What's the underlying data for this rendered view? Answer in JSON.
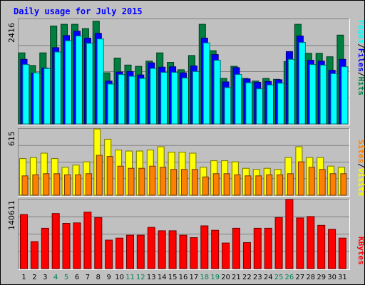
{
  "chart_data": [
    {
      "type": "bar",
      "title": "Daily usage for July 2015",
      "categories": [
        "1",
        "2",
        "3",
        "4",
        "5",
        "6",
        "7",
        "8",
        "9",
        "10",
        "11",
        "12",
        "13",
        "14",
        "15",
        "16",
        "17",
        "18",
        "19",
        "20",
        "21",
        "22",
        "23",
        "24",
        "25",
        "26",
        "27",
        "28",
        "29",
        "30",
        "31"
      ],
      "weekend_days": [
        "4",
        "5",
        "11",
        "12",
        "18",
        "19",
        "25",
        "26"
      ],
      "ylabel_max": "2416",
      "ylim": [
        0,
        2416
      ],
      "legend_label": "Hits",
      "legend_label2": "Files",
      "legend_label3": "Pages",
      "legend_sep": "/",
      "grid": true,
      "series": [
        {
          "name": "Hits",
          "color": "#008040",
          "values": [
            1640,
            1350,
            1640,
            2260,
            2300,
            2300,
            2200,
            2370,
            1180,
            1520,
            1360,
            1330,
            1450,
            1640,
            1420,
            1250,
            1580,
            2300,
            1690,
            1050,
            1330,
            1050,
            990,
            1050,
            1030,
            1440,
            2300,
            1630,
            1630,
            1550,
            2050
          ]
        },
        {
          "name": "Files",
          "color": "#0000ff",
          "values": [
            1490,
            1170,
            1290,
            1760,
            2040,
            2140,
            1980,
            2090,
            990,
            1200,
            1210,
            1130,
            1410,
            1310,
            1320,
            1180,
            1340,
            1980,
            1600,
            970,
            1300,
            1040,
            960,
            980,
            1020,
            1670,
            2030,
            1470,
            1450,
            1240,
            1490
          ]
        },
        {
          "name": "Pages",
          "color": "#00ffff",
          "values": [
            1370,
            1180,
            1280,
            1660,
            1920,
            2030,
            1860,
            1960,
            920,
            1140,
            1100,
            1050,
            1280,
            1190,
            1190,
            1060,
            1210,
            1870,
            1470,
            840,
            1140,
            950,
            810,
            900,
            940,
            1490,
            1880,
            1370,
            1360,
            1160,
            1320
          ]
        }
      ]
    },
    {
      "type": "bar",
      "ylabel_max": "615",
      "ylim": [
        0,
        615
      ],
      "legend_label": "Visits",
      "legend_label2": "Sites",
      "legend_sep": "/",
      "grid": true,
      "series": [
        {
          "name": "Visits",
          "color": "#ffff00",
          "values": [
            340,
            350,
            390,
            340,
            260,
            280,
            310,
            615,
            520,
            420,
            410,
            410,
            420,
            450,
            400,
            400,
            390,
            260,
            320,
            320,
            310,
            250,
            240,
            250,
            240,
            350,
            450,
            350,
            350,
            270,
            260
          ]
        },
        {
          "name": "Sites",
          "color": "#ff8000",
          "values": [
            180,
            190,
            200,
            200,
            190,
            190,
            200,
            370,
            360,
            270,
            250,
            250,
            270,
            260,
            240,
            240,
            240,
            170,
            200,
            200,
            190,
            180,
            180,
            190,
            190,
            200,
            310,
            260,
            240,
            200,
            200
          ]
        }
      ]
    },
    {
      "type": "bar",
      "ylabel_max": "140611",
      "ylim": [
        0,
        140611
      ],
      "legend_label": "KBytes",
      "grid": true,
      "series": [
        {
          "name": "KBytes",
          "color": "#ff0000",
          "values": [
            110000,
            55000,
            82000,
            112000,
            92000,
            93000,
            115000,
            104000,
            58000,
            62000,
            68000,
            68000,
            84000,
            77000,
            77000,
            68000,
            63000,
            87000,
            78000,
            52000,
            82000,
            53000,
            82000,
            82000,
            104000,
            140611,
            103000,
            106000,
            88000,
            80000,
            62000
          ]
        }
      ]
    }
  ]
}
